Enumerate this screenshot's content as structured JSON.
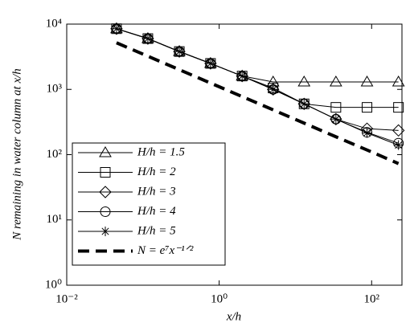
{
  "chart_data": {
    "type": "line",
    "xlabel": "x/h",
    "ylabel": "N remaining in water column at x/h",
    "log_x": true,
    "log_y": true,
    "xlim": [
      0.01,
      250
    ],
    "ylim": [
      1,
      10000
    ],
    "xticks": [
      {
        "value": 0.01,
        "label": "10⁻²"
      },
      {
        "value": 1,
        "label": "10⁰"
      },
      {
        "value": 100,
        "label": "10²"
      }
    ],
    "yticks": [
      {
        "value": 1,
        "label": "10⁰"
      },
      {
        "value": 10,
        "label": "10¹"
      },
      {
        "value": 100,
        "label": "10²"
      },
      {
        "value": 1000,
        "label": "10³"
      },
      {
        "value": 10000,
        "label": "10⁴"
      }
    ],
    "legend": "lower left",
    "x": [
      0.045,
      0.116,
      0.3,
      0.77,
      2,
      5.1,
      13,
      34,
      87,
      225
    ],
    "series": [
      {
        "name": "H/h = 1.5",
        "color": "#000000",
        "marker": "triangle",
        "values": [
          8500,
          6000,
          3800,
          2500,
          1600,
          1300,
          1300,
          1300,
          1300,
          1300
        ]
      },
      {
        "name": "H/h = 2",
        "color": "#000000",
        "marker": "square",
        "values": [
          8500,
          6000,
          3800,
          2500,
          1600,
          1050,
          600,
          530,
          530,
          530
        ]
      },
      {
        "name": "H/h = 3",
        "color": "#000000",
        "marker": "diamond",
        "values": [
          8500,
          6000,
          3800,
          2500,
          1600,
          1000,
          600,
          350,
          250,
          235
        ]
      },
      {
        "name": "H/h = 4",
        "color": "#000000",
        "marker": "circle",
        "values": [
          8500,
          6000,
          3800,
          2500,
          1600,
          1000,
          600,
          350,
          220,
          150
        ]
      },
      {
        "name": "H/h = 5",
        "color": "#000000",
        "marker": "star",
        "values": [
          8500,
          6000,
          3800,
          2500,
          1600,
          1000,
          600,
          350,
          215,
          140
        ]
      },
      {
        "name": "N = e⁷x⁻¹ᐟ²",
        "color": "#000000",
        "marker": "none",
        "line_style": "dashed",
        "values": [
          5171,
          3221,
          2003,
          1250,
          776,
          486,
          304,
          188,
          118,
          73
        ]
      }
    ]
  }
}
